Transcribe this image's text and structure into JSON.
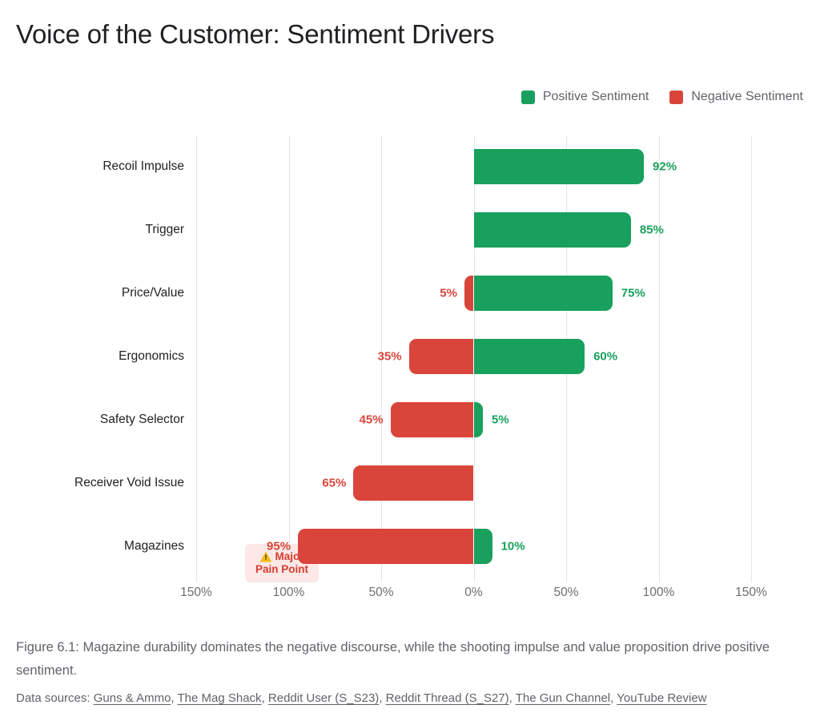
{
  "page_title": "Voice of the Customer: Sentiment Drivers",
  "legend": {
    "positive": "Positive Sentiment",
    "negative": "Negative Sentiment"
  },
  "colors": {
    "positive": "#18a05c",
    "negative": "#d9453b",
    "grid": "#e6e6e6",
    "axis_text": "#6e6e6e",
    "annotation_bg": "#fce9e7",
    "annotation_text": "#d93a2f",
    "warning_yellow": "#f9bc15"
  },
  "chart_data": {
    "type": "bar",
    "subtype": "diverging-horizontal",
    "categories": [
      "Recoil Impulse",
      "Trigger",
      "Price/Value",
      "Ergonomics",
      "Safety Selector",
      "Receiver Void Issue",
      "Magazines"
    ],
    "series": [
      {
        "name": "Positive Sentiment",
        "values": [
          92,
          85,
          75,
          60,
          5,
          0,
          10
        ]
      },
      {
        "name": "Negative Sentiment",
        "values": [
          0,
          0,
          5,
          35,
          45,
          65,
          95
        ]
      }
    ],
    "value_suffix": "%",
    "axis_ticks": [
      "150%",
      "100%",
      "50%",
      "0%",
      "50%",
      "100%",
      "150%"
    ],
    "axis_tick_values": [
      -150,
      -100,
      -50,
      0,
      50,
      100,
      150
    ],
    "axis_range": [
      -150,
      150
    ],
    "grid": true,
    "legend_position": "top-right",
    "annotation": {
      "category": "Magazines",
      "lines": [
        "Major",
        "Pain Point"
      ],
      "icon": "warning-icon"
    }
  },
  "caption": "Figure 6.1: Magazine durability dominates the negative discourse, while the shooting impulse and value proposition drive positive sentiment.",
  "sources": {
    "prefix": "Data sources:",
    "items": [
      "Guns & Ammo",
      "The Mag Shack",
      "Reddit User (S_S23)",
      "Reddit Thread (S_S27)",
      "The Gun Channel",
      "YouTube Review"
    ]
  }
}
